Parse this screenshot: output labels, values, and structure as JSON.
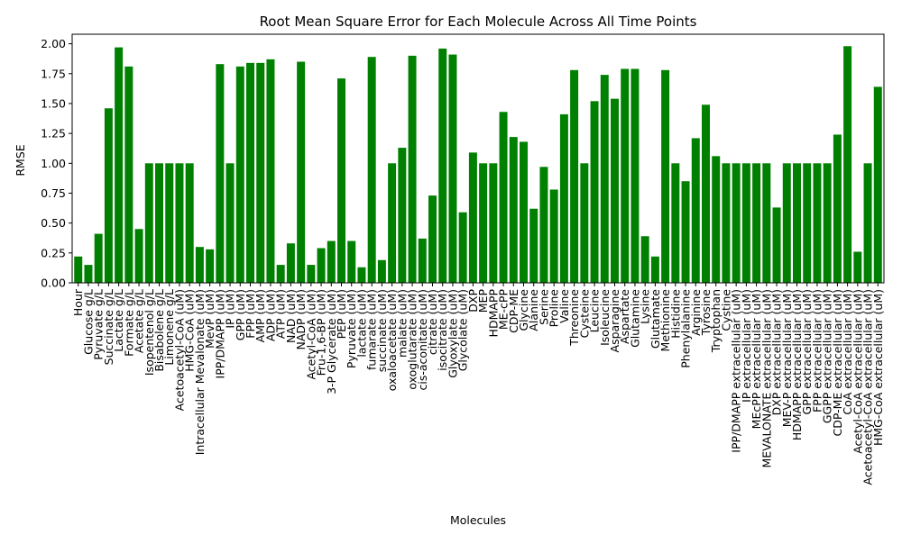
{
  "chart_data": {
    "type": "bar",
    "title": "Root Mean Square Error for Each Molecule Across All Time Points",
    "xlabel": "Molecules",
    "ylabel": "RMSE",
    "ylim": [
      0,
      2.08
    ],
    "yticks": [
      "0.00",
      "0.25",
      "0.50",
      "0.75",
      "1.00",
      "1.25",
      "1.50",
      "1.75",
      "2.00"
    ],
    "yticks_values": [
      0,
      0.25,
      0.5,
      0.75,
      1.0,
      1.25,
      1.5,
      1.75,
      2.0
    ],
    "bar_color": "#008000",
    "grid": false,
    "categories": [
      "Hour",
      "Glucose g/L",
      "Pyruvate g/L",
      "Succinate g/L",
      "Lactate g/L",
      "Formate g/L",
      "Acetate g/L",
      "Isopentenol g/L",
      "Bisabolene g/L",
      "Limonene g/L",
      "Acetoacetyl-CoA (uM)",
      "HMG-CoA (uM)",
      "Intracellular Mevalonate (uM)",
      "MevP (uM)",
      "IPP/DMAPP (uM)",
      "IP (uM)",
      "GPP (uM)",
      "FPP (uM)",
      "AMP (uM)",
      "ADP (uM)",
      "ATP (uM)",
      "NAD (uM)",
      "NADP (uM)",
      "Acetyl-CoA (uM)",
      "Fru-1,6-BP (uM)",
      "3-P Glycerate (uM)",
      "PEP (uM)",
      "Pyruvate (uM)",
      "lactate (uM)",
      "fumarate (uM)",
      "succinate (uM)",
      "oxaloacetate (uM)",
      "malate (uM)",
      "oxoglutarate (uM)",
      "cis-aconitate (uM)",
      "citrate (uM)",
      "isocitrate (uM)",
      "Glyoxylate (uM)",
      "Glycolate (uM)",
      "DXP",
      "MEP",
      "HDMAPP",
      "ME-cPP",
      "CDP-ME",
      "Glycine",
      "Alanine",
      "Serine",
      "Proline",
      "Valine",
      "Threonine",
      "Cysteine",
      "Leucine",
      "Isoleucine",
      "Asparagine",
      "Aspartate",
      "Glutamine",
      "Lysine",
      "Glutamate",
      "Methionine",
      "Histidine",
      "Phenylalanine",
      "Arginine",
      "Tyrosine",
      "Tryptophan",
      "Cystine",
      "IPP/DMAPP extracellular (uM)",
      "IP extracellular (uM)",
      "MEcPP extracellular (uM)",
      "MEVALONATE extracellular (uM)",
      "DXP extracellular (uM)",
      "MEV-P extracellular (uM)",
      "HDMAPP extracellular (uM)",
      "GPP extracellular (uM)",
      "FPP extracellular (uM)",
      "GGPP extracellular (uM)",
      "CDP-ME extracellular (uM)",
      "CoA extracellular (uM)",
      "Acetyl-CoA extracellular (uM)",
      "Acetoacetyl-CoA extracellular (uM)",
      "HMG-CoA extracellular (uM)"
    ],
    "values": [
      0.22,
      0.15,
      0.41,
      1.46,
      1.97,
      1.81,
      0.45,
      1.0,
      1.0,
      1.0,
      1.0,
      1.0,
      0.3,
      0.28,
      1.83,
      1.0,
      1.81,
      1.84,
      1.84,
      1.87,
      0.15,
      0.33,
      1.85,
      0.15,
      0.29,
      0.35,
      1.71,
      0.35,
      0.13,
      1.89,
      0.19,
      1.0,
      1.13,
      1.9,
      0.37,
      0.73,
      1.96,
      1.91,
      0.59,
      1.09,
      1.0,
      1.0,
      1.43,
      1.22,
      1.18,
      0.62,
      0.97,
      0.78,
      1.41,
      1.78,
      1.0,
      1.52,
      1.74,
      1.54,
      1.79,
      1.79,
      0.39,
      0.22,
      1.78,
      1.0,
      0.85,
      1.21,
      1.49,
      1.06,
      1.0,
      1.0,
      1.0,
      1.0,
      1.0,
      0.63,
      1.0,
      1.0,
      1.0,
      1.0,
      1.0,
      1.24,
      1.98,
      0.26,
      1.0,
      1.64
    ]
  }
}
